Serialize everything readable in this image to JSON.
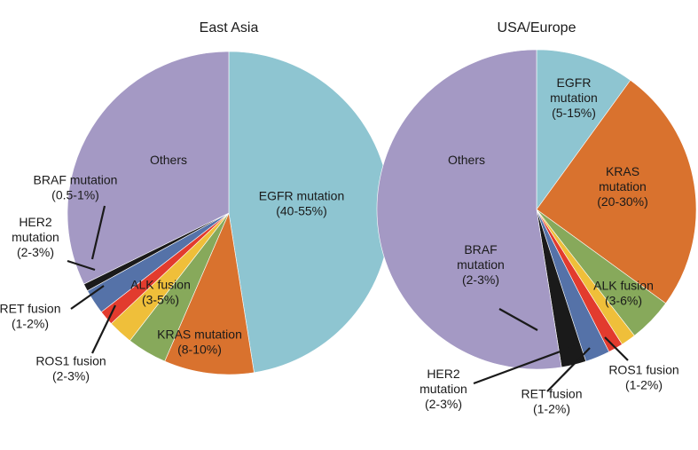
{
  "chart_data": [
    {
      "type": "pie",
      "title": "East Asia",
      "slices": [
        {
          "key": "egfr",
          "lines": [
            "EGFR mutation",
            "(40-55%)"
          ],
          "value": 47.5,
          "color": "#8ec5d1"
        },
        {
          "key": "kras",
          "lines": [
            "KRAS mutation",
            "(8-10%)"
          ],
          "value": 9,
          "color": "#d9722e"
        },
        {
          "key": "alk",
          "lines": [
            "ALK fusion",
            "(3-5%)"
          ],
          "value": 4,
          "color": "#87a95b"
        },
        {
          "key": "ros1",
          "lines": [
            "ROS1 fusion",
            "(2-3%)"
          ],
          "value": 2.5,
          "color": "#efbf3a"
        },
        {
          "key": "ret",
          "lines": [
            "RET fusion",
            "(1-2%)"
          ],
          "value": 1.5,
          "color": "#e23b2e"
        },
        {
          "key": "her2",
          "lines": [
            "HER2",
            "mutation",
            "(2-3%)"
          ],
          "value": 2.5,
          "color": "#5572a8"
        },
        {
          "key": "braf",
          "lines": [
            "BRAF mutation",
            "(0.5-1%)"
          ],
          "value": 0.75,
          "color": "#1a1a1a"
        },
        {
          "key": "others",
          "lines": [
            "Others"
          ],
          "value": 32.25,
          "color": "#a499c4"
        }
      ]
    },
    {
      "type": "pie",
      "title": "USA/Europe",
      "slices": [
        {
          "key": "egfr",
          "lines": [
            "EGFR",
            "mutation",
            "(5-15%)"
          ],
          "value": 10,
          "color": "#8ec5d1"
        },
        {
          "key": "kras",
          "lines": [
            "KRAS",
            "mutation",
            "(20-30%)"
          ],
          "value": 25,
          "color": "#d9722e"
        },
        {
          "key": "alk",
          "lines": [
            "ALK fusion",
            "(3-6%)"
          ],
          "value": 4.5,
          "color": "#87a95b"
        },
        {
          "key": "ros1",
          "lines": [
            "ROS1 fusion",
            "(1-2%)"
          ],
          "value": 1.5,
          "color": "#efbf3a"
        },
        {
          "key": "ret",
          "lines": [
            "RET fusion",
            "(1-2%)"
          ],
          "value": 1.5,
          "color": "#e23b2e"
        },
        {
          "key": "her2",
          "lines": [
            "HER2",
            "mutation",
            "(2-3%)"
          ],
          "value": 2.5,
          "color": "#5572a8"
        },
        {
          "key": "braf",
          "lines": [
            "BRAF",
            "mutation",
            "(2-3%)"
          ],
          "value": 2.5,
          "color": "#1a1a1a"
        },
        {
          "key": "others",
          "lines": [
            "Others"
          ],
          "value": 52.5,
          "color": "#a499c4"
        }
      ]
    }
  ]
}
